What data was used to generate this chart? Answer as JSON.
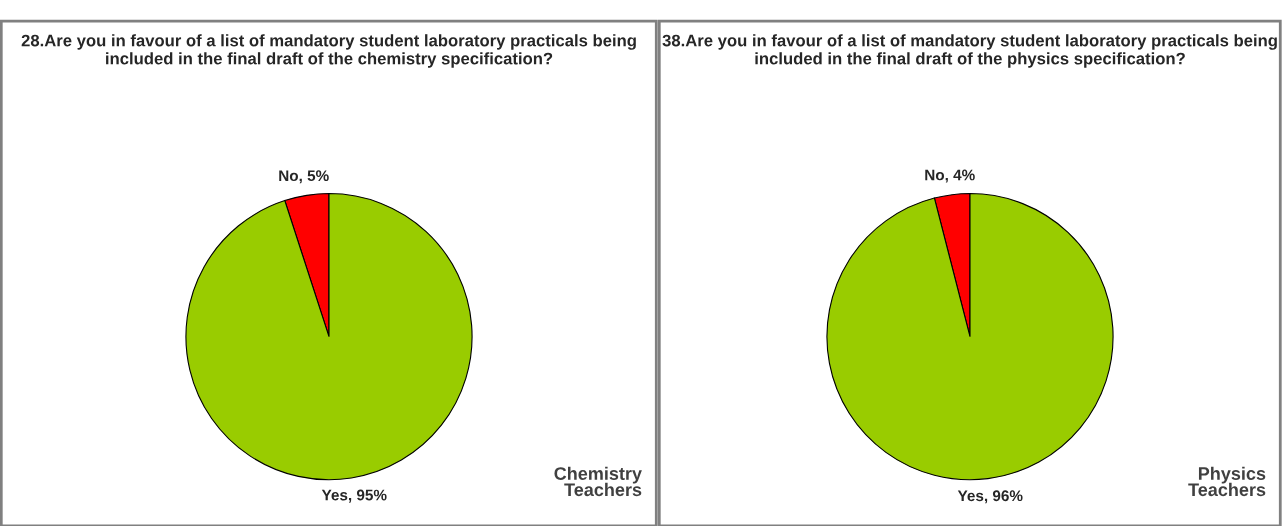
{
  "chart_data": [
    {
      "type": "pie",
      "title": "28.Are you in favour of a list of mandatory student laboratory practicals being included in the final draft of the chemistry specification?",
      "categories": [
        "No, 5%",
        "Yes, 95%"
      ],
      "values": [
        5,
        95
      ],
      "colors": [
        "#ff0000",
        "#99cc00"
      ],
      "annotations": [
        "Chemistry\nTeachers"
      ],
      "legend": false
    },
    {
      "type": "pie",
      "title": "38.Are you in favour of a list of mandatory student laboratory practicals being included in the final draft of the physics specification?",
      "categories": [
        "No, 4%",
        "Yes, 96%"
      ],
      "values": [
        4,
        96
      ],
      "colors": [
        "#ff0000",
        "#99cc00"
      ],
      "annotations": [
        "Physics\nTeachers"
      ],
      "legend": false
    }
  ]
}
